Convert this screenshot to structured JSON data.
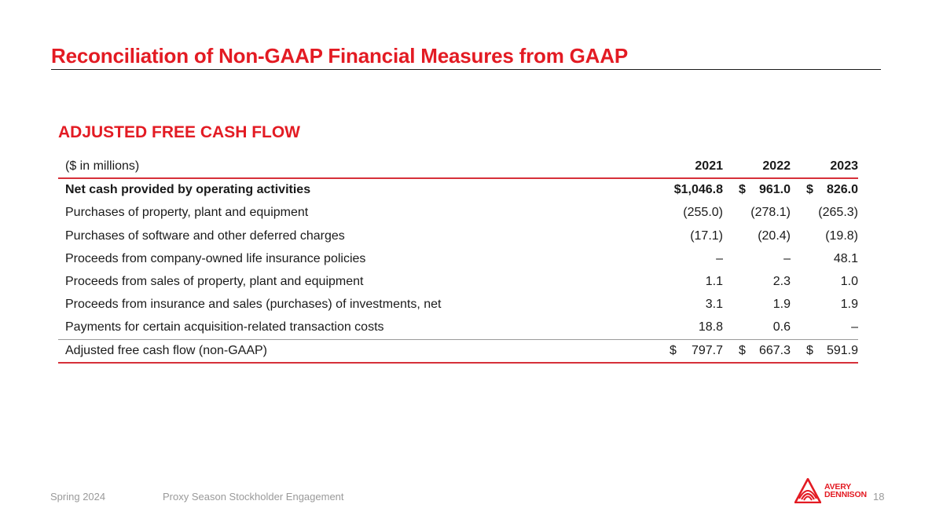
{
  "slide": {
    "title": "Reconciliation of Non-GAAP Financial Measures from GAAP",
    "section_heading": "ADJUSTED FREE CASH FLOW"
  },
  "table": {
    "unit_label": "($ in millions)",
    "years": [
      "2021",
      "2022",
      "2023"
    ],
    "rows": [
      {
        "label": "Net cash provided by operating activities",
        "values": [
          "$1,046.8",
          "961.0",
          "826.0"
        ]
      },
      {
        "label": "Purchases of property, plant and equipment",
        "values": [
          "(255.0)",
          "(278.1)",
          "(265.3)"
        ]
      },
      {
        "label": "Purchases of software and other deferred charges",
        "values": [
          "(17.1)",
          "(20.4)",
          "(19.8)"
        ]
      },
      {
        "label": "Proceeds from company-owned life insurance policies",
        "values": [
          "–",
          "–",
          "48.1"
        ]
      },
      {
        "label": "Proceeds from sales of property, plant and equipment",
        "values": [
          "1.1",
          "2.3",
          "1.0"
        ]
      },
      {
        "label": "Proceeds from insurance and sales (purchases) of investments, net",
        "values": [
          "3.1",
          "1.9",
          "1.9"
        ]
      },
      {
        "label": "Payments for certain acquisition-related transaction costs",
        "values": [
          "18.8",
          "0.6",
          "–"
        ]
      }
    ],
    "total": {
      "label": "Adjusted free cash flow (non-GAAP)",
      "values": [
        "797.7",
        "667.3",
        "591.9"
      ]
    },
    "currency_symbol": "$"
  },
  "footer": {
    "date": "Spring 2024",
    "event": "Proxy Season Stockholder Engagement",
    "page_number": "18"
  },
  "logo": {
    "line1": "AVERY",
    "line2": "DENNISON",
    "icon": "avery-dennison-logo-icon"
  },
  "colors": {
    "brand_red": "#e31b23",
    "rule_red": "#d6303a",
    "footer_gray": "#9a9a9a"
  }
}
